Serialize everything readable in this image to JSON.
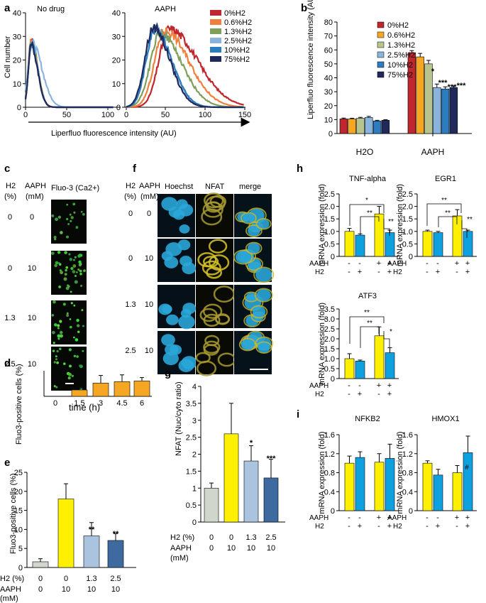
{
  "panel_labels": {
    "a": "a",
    "b": "b",
    "c": "c",
    "d": "d",
    "e": "e",
    "f": "f",
    "g": "g",
    "h": "h",
    "i": "i"
  },
  "colors": {
    "yellow": "#ffef00",
    "orange": "#f5a623",
    "red": "#c0262d",
    "orange2": "#f07f3c",
    "green": "#7fa05a",
    "lightblue": "#8ab4dc",
    "blue": "#2e7cc0",
    "navy": "#1f2a5a",
    "cyan": "#0fa0e0",
    "gray": "#d0d6cc",
    "lightblue2": "#aac4e0",
    "steel": "#3e6aa0"
  },
  "panel_a": {
    "left_title": "No drug",
    "right_title": "AAPH",
    "ylabel": "Cell number",
    "xlabel": "Liperfluo fluorescence intensity (AU)",
    "left_xticks": [
      "0",
      "50",
      "100"
    ],
    "right_xticks": [
      "0",
      "50",
      "100",
      "150"
    ],
    "left_yticks": [
      "0",
      "10",
      "20",
      "30",
      "40"
    ],
    "right_yticks": [
      "0",
      "10",
      "20",
      "30",
      "40"
    ]
  },
  "chart_data": [
    {
      "id": "b",
      "type": "bar",
      "ylabel": "Liperfluo fluorescence intensity (AU)",
      "ylim": [
        0,
        80
      ],
      "yticks": [
        "0",
        "10",
        "20",
        "30",
        "40",
        "50",
        "60",
        "70",
        "80"
      ],
      "categories": [
        "H2O",
        "AAPH"
      ],
      "legend": [
        "0%H2",
        "0.6%H2",
        "1.3%H2",
        "2.5%H2",
        "10%H2",
        "75%H2"
      ],
      "series": [
        {
          "name": "0%H2",
          "values": [
            10.5,
            58
          ]
        },
        {
          "name": "0.6%H2",
          "values": [
            10.5,
            55
          ]
        },
        {
          "name": "1.3%H2",
          "values": [
            11,
            50
          ]
        },
        {
          "name": "2.5%H2",
          "values": [
            11.5,
            33
          ]
        },
        {
          "name": "10%H2",
          "values": [
            9,
            32
          ]
        },
        {
          "name": "75%H2",
          "values": [
            9.5,
            33
          ]
        }
      ],
      "errors": [
        [
          0.6,
          1.5
        ],
        [
          0.5,
          2.5
        ],
        [
          0.6,
          2.5
        ],
        [
          0.8,
          2.5
        ],
        [
          0.5,
          1.5
        ],
        [
          0.4,
          1
        ]
      ],
      "annotations": [
        "*",
        "***",
        "***",
        "***"
      ]
    },
    {
      "id": "d",
      "type": "bar",
      "ylabel": "Fluo3-positive cells (%)",
      "xlabel": "time (h)",
      "categories": [
        "0",
        "1.5",
        "3",
        "4.5",
        "6"
      ],
      "values": [
        0,
        7.5,
        15.5,
        17.2,
        18
      ],
      "errors": [
        0,
        1.5,
        9,
        8,
        4
      ],
      "ylim": [
        0,
        30
      ],
      "yticks": [
        "0",
        "5",
        "10",
        "15",
        "20",
        "25",
        "30"
      ]
    },
    {
      "id": "e",
      "type": "bar",
      "ylabel": "Fluo3-positive cells (%)",
      "row_labels": [
        "H2 (%)",
        "AAPH",
        "(mM)"
      ],
      "h2": [
        "0",
        "0",
        "1.3",
        "2.5"
      ],
      "aaph": [
        "0",
        "10",
        "10",
        "10"
      ],
      "values": [
        1.5,
        18,
        8.3,
        7.1
      ],
      "errors": [
        0.8,
        4,
        3.5,
        1.8
      ],
      "ylim": [
        0,
        25
      ],
      "yticks": [
        "0",
        "5",
        "10",
        "15",
        "20",
        "25"
      ],
      "annotations": [
        "**",
        "**"
      ]
    },
    {
      "id": "g",
      "type": "bar",
      "ylabel": "NFAT (Nuc/cyto ratio)",
      "row_labels": [
        "H2 (%)",
        "AAPH",
        "(mM)"
      ],
      "h2": [
        "0",
        "0",
        "1.3",
        "2.5"
      ],
      "aaph": [
        "0",
        "10",
        "10",
        "10"
      ],
      "values": [
        1.0,
        2.6,
        1.8,
        1.3
      ],
      "errors": [
        0.15,
        0.9,
        0.45,
        0.55
      ],
      "ylim": [
        0,
        4
      ],
      "yticks": [
        "0",
        "0.5",
        "1",
        "1.5",
        "2",
        "2.5",
        "3",
        "3.5",
        "4"
      ],
      "annotations": [
        "*",
        "***"
      ]
    },
    {
      "id": "h-tnf",
      "type": "bar",
      "title": "TNF-alpha",
      "ylabel": "mRNA expression (fold)",
      "values": [
        1.0,
        0.85,
        1.7,
        0.95
      ],
      "errors": [
        0.12,
        0.05,
        0.3,
        0.1
      ],
      "ylim": [
        0,
        2.5
      ],
      "yticks": [
        "0",
        "0.5",
        "1.0",
        "1.5",
        "2.0",
        "2.5"
      ],
      "aaph": [
        "-",
        "-",
        "+",
        "+"
      ],
      "h2": [
        "-",
        "+",
        "-",
        "+"
      ],
      "sig": [
        "*",
        "**",
        "**"
      ]
    },
    {
      "id": "h-egr1",
      "type": "bar",
      "title": "EGR1",
      "ylabel": "mRNA expression (fold)",
      "values": [
        1.0,
        0.95,
        1.62,
        1.0
      ],
      "errors": [
        0.05,
        0.05,
        0.25,
        0.05
      ],
      "ylim": [
        0,
        2.5
      ],
      "yticks": [
        "0",
        "0.5",
        "1.0",
        "1.5",
        "2.0",
        "2.5"
      ],
      "aaph": [
        "-",
        "-",
        "+",
        "+"
      ],
      "h2": [
        "-",
        "+",
        "-",
        "+"
      ],
      "sig": [
        "**",
        "**",
        "**"
      ]
    },
    {
      "id": "h-atf3",
      "type": "bar",
      "title": "ATF3",
      "ylabel": "mRNA expression (fold)",
      "values": [
        1.0,
        0.88,
        2.15,
        1.3
      ],
      "errors": [
        0.25,
        0.05,
        0.45,
        0.25
      ],
      "ylim": [
        0,
        3.5
      ],
      "yticks": [
        "0",
        "0.5",
        "1.0",
        "1.5",
        "2.0",
        "2.5",
        "3.0",
        "3.5"
      ],
      "aaph": [
        "-",
        "-",
        "+",
        "+"
      ],
      "h2": [
        "-",
        "+",
        "-",
        "+"
      ],
      "sig": [
        "**",
        "**",
        "*"
      ]
    },
    {
      "id": "i-nfkb2",
      "type": "bar",
      "title": "NFKB2",
      "ylabel": "mRNA expression (fold)",
      "values": [
        1.0,
        1.12,
        1.02,
        1.1
      ],
      "errors": [
        0.15,
        0.12,
        0.18,
        0.3
      ],
      "ylim": [
        0,
        1.6
      ],
      "yticks": [
        "0",
        "0.4",
        "0.8",
        "1.2",
        "1.6"
      ],
      "aaph": [
        "-",
        "-",
        "+",
        "+"
      ],
      "h2": [
        "-",
        "+",
        "-",
        "+"
      ],
      "sig": []
    },
    {
      "id": "i-hmox1",
      "type": "bar",
      "title": "HMOX1",
      "ylabel": "mRNA expression (fold)",
      "values": [
        1.0,
        0.75,
        0.8,
        1.22
      ],
      "errors": [
        0.05,
        0.12,
        0.15,
        0.35
      ],
      "ylim": [
        0,
        1.6
      ],
      "yticks": [
        "0",
        "0.4",
        "0.8",
        "1.2",
        "1.6"
      ],
      "aaph": [
        "-",
        "-",
        "+",
        "+"
      ],
      "h2": [
        "-",
        "+",
        "-",
        "+"
      ],
      "sig": [
        "#"
      ]
    }
  ],
  "panel_c": {
    "head_h2": "H2",
    "head_h2_unit": "(%)",
    "head_aaph": "AAPH",
    "head_aaph_unit": "(mM)",
    "head_img": "Fluo-3 (Ca2+)",
    "rows": [
      {
        "h2": "0",
        "aaph": "0"
      },
      {
        "h2": "0",
        "aaph": "10"
      },
      {
        "h2": "1.3",
        "aaph": "10"
      },
      {
        "h2": "2.5",
        "aaph": "10"
      }
    ]
  },
  "panel_f": {
    "head_h2": "H2",
    "head_h2_unit": "(%)",
    "head_aaph": "AAPH",
    "head_aaph_unit": "(mM)",
    "columns": [
      "Hoechst",
      "NFAT",
      "merge"
    ],
    "rows": [
      {
        "h2": "0",
        "aaph": "0"
      },
      {
        "h2": "0",
        "aaph": "10"
      },
      {
        "h2": "1.3",
        "aaph": "10"
      },
      {
        "h2": "2.5",
        "aaph": "10"
      }
    ]
  },
  "row_labels_h": {
    "aaph": "AAPH",
    "h2": "H2"
  }
}
